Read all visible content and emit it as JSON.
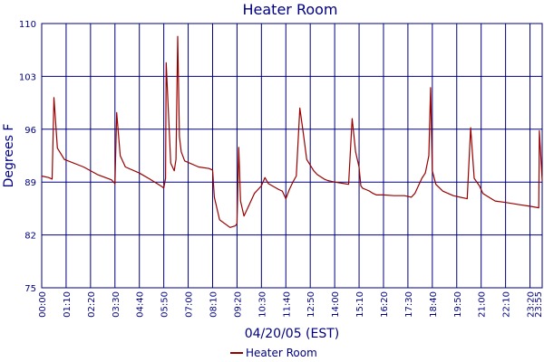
{
  "chart_data": {
    "type": "line",
    "title": "Heater Room",
    "xlabel": "04/20/05 (EST)",
    "ylabel": "Degrees F",
    "ylim": [
      75,
      110
    ],
    "yticks": [
      75,
      82,
      89,
      96,
      103,
      110
    ],
    "xlim": [
      "00:00",
      "23:55"
    ],
    "xticks": [
      "00:00",
      "01:10",
      "02:20",
      "03:30",
      "04:40",
      "05:50",
      "07:00",
      "08:10",
      "09:20",
      "10:30",
      "11:40",
      "12:50",
      "14:00",
      "15:10",
      "16:20",
      "17:30",
      "18:40",
      "19:50",
      "21:00",
      "22:10",
      "23:20",
      "23:55"
    ],
    "grid": true,
    "legend": "bottom-center",
    "colors": {
      "series": "#990000",
      "grid": "#000080",
      "text": "#000080"
    },
    "series": [
      {
        "name": "Heater Room",
        "x": [
          "00:00",
          "00:20",
          "00:30",
          "00:35",
          "00:45",
          "01:05",
          "02:00",
          "02:40",
          "03:20",
          "03:30",
          "03:35",
          "03:45",
          "04:00",
          "04:40",
          "05:10",
          "05:45",
          "05:50",
          "05:55",
          "05:57",
          "06:10",
          "06:20",
          "06:25",
          "06:30",
          "06:35",
          "06:40",
          "06:50",
          "07:30",
          "08:00",
          "08:10",
          "08:15",
          "08:30",
          "09:00",
          "09:15",
          "09:20",
          "09:25",
          "09:30",
          "09:40",
          "09:50",
          "10:10",
          "10:30",
          "10:40",
          "10:50",
          "11:20",
          "11:30",
          "11:40",
          "11:50",
          "12:00",
          "12:10",
          "12:20",
          "12:30",
          "12:40",
          "13:00",
          "13:10",
          "13:30",
          "13:40",
          "14:00",
          "14:40",
          "14:50",
          "15:00",
          "15:10",
          "15:15",
          "15:20",
          "15:30",
          "15:40",
          "15:50",
          "16:00",
          "16:20",
          "16:50",
          "17:20",
          "17:40",
          "17:50",
          "18:10",
          "18:20",
          "18:30",
          "18:35",
          "18:40",
          "18:50",
          "19:10",
          "19:40",
          "20:20",
          "20:30",
          "20:40",
          "20:55",
          "21:00",
          "21:05",
          "21:15",
          "21:40",
          "22:10",
          "22:50",
          "23:20",
          "23:45",
          "23:47",
          "23:55"
        ],
        "values": [
          89.8,
          89.6,
          89.4,
          100.2,
          93.5,
          92.0,
          91.0,
          90.0,
          89.3,
          88.8,
          98.2,
          92.5,
          91.0,
          90.2,
          89.4,
          88.4,
          88.2,
          89.5,
          104.8,
          91.5,
          90.5,
          92.0,
          108.3,
          95.0,
          93.0,
          91.8,
          91.0,
          90.8,
          90.6,
          87.0,
          84.0,
          83.0,
          83.2,
          83.5,
          93.6,
          86.5,
          84.5,
          85.5,
          87.5,
          88.5,
          89.6,
          88.8,
          88.0,
          87.8,
          86.8,
          88.0,
          89.0,
          89.8,
          98.8,
          95.5,
          92.0,
          90.5,
          90.0,
          89.4,
          89.2,
          89.0,
          88.7,
          97.4,
          93.0,
          91.0,
          88.5,
          88.2,
          88.0,
          87.8,
          87.5,
          87.3,
          87.3,
          87.2,
          87.2,
          87.0,
          87.5,
          89.5,
          90.2,
          92.5,
          101.5,
          90.5,
          88.7,
          87.8,
          87.2,
          86.8,
          96.2,
          89.5,
          88.5,
          88.0,
          87.5,
          87.2,
          86.5,
          86.3,
          86.0,
          85.8,
          85.6,
          95.8,
          89.2
        ]
      }
    ]
  }
}
